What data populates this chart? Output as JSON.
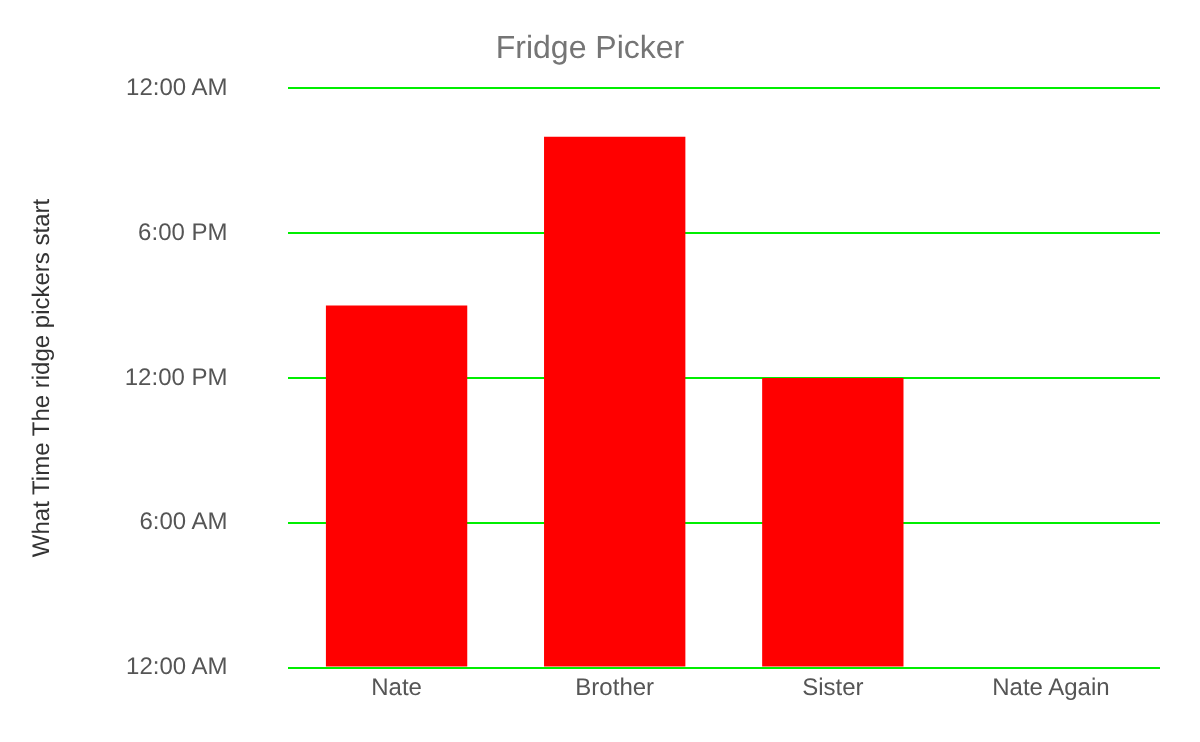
{
  "chart_data": {
    "type": "bar",
    "title": "Fridge Picker",
    "ylabel": "What Time The ridge pickers start",
    "categories": [
      "Nate",
      "Brother",
      "Sister",
      "Nate Again"
    ],
    "values": [
      15,
      22,
      12,
      0
    ],
    "color": "#ff0000",
    "ylim": [
      0,
      24
    ],
    "yticks": [
      {
        "value": 0,
        "label": "12:00 AM"
      },
      {
        "value": 6,
        "label": "6:00 AM"
      },
      {
        "value": 12,
        "label": "12:00 PM"
      },
      {
        "value": 18,
        "label": "6:00 PM"
      },
      {
        "value": 24,
        "label": "12:00 AM"
      }
    ],
    "grid": "y"
  }
}
